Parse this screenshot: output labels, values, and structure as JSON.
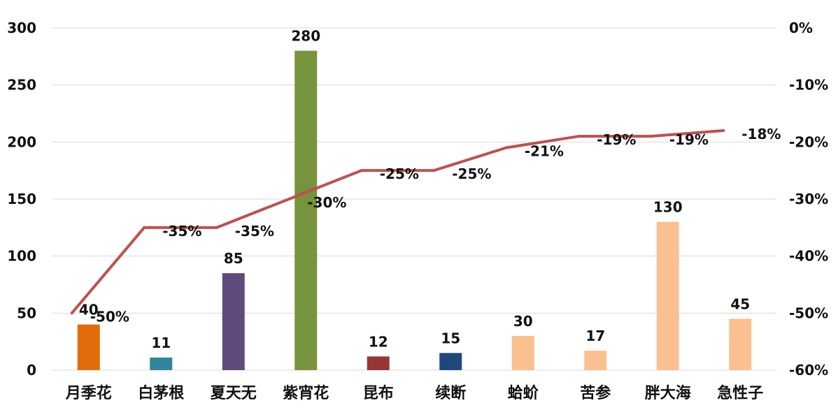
{
  "chart_data": {
    "type": "bar",
    "categories": [
      "月季花",
      "白茅根",
      "夏天无",
      "紫宵花",
      "昆布",
      "续断",
      "蛤蚧",
      "苦参",
      "胖大海",
      "急性子"
    ],
    "series": [
      {
        "type": "bar",
        "axis": "left",
        "values": [
          40,
          11,
          85,
          280,
          12,
          15,
          30,
          17,
          130,
          45
        ],
        "value_labels": [
          "40",
          "11",
          "85",
          "280",
          "12",
          "15",
          "30",
          "17",
          "130",
          "45"
        ],
        "colors": [
          "#e36c0a",
          "#31859c",
          "#604a7b",
          "#77933c",
          "#953735",
          "#1f497d",
          "#fac090",
          "#fac090",
          "#fac090",
          "#fac090"
        ]
      },
      {
        "type": "line",
        "axis": "right",
        "values": [
          -50,
          -35,
          -35,
          -30,
          -25,
          -25,
          -21,
          -19,
          -19,
          -18
        ],
        "value_labels": [
          "-50%",
          "-35%",
          "-35%",
          "-30%",
          "-25%",
          "-25%",
          "-21%",
          "-19%",
          "-19%",
          "-18%"
        ],
        "color": "#c0504d"
      }
    ],
    "ylim": [
      0,
      300
    ],
    "yticks": [
      "0",
      "50",
      "100",
      "150",
      "200",
      "250",
      "300"
    ],
    "ytick_values": [
      0,
      50,
      100,
      150,
      200,
      250,
      300
    ],
    "y2lim": [
      -60,
      0
    ],
    "y2ticks": [
      "-60%",
      "-50%",
      "-40%",
      "-30%",
      "-20%",
      "-10%",
      "0%"
    ],
    "y2tick_values": [
      -60,
      -50,
      -40,
      -30,
      -20,
      -10,
      0
    ],
    "grid": true,
    "grid_color": "#d9d9d9"
  }
}
